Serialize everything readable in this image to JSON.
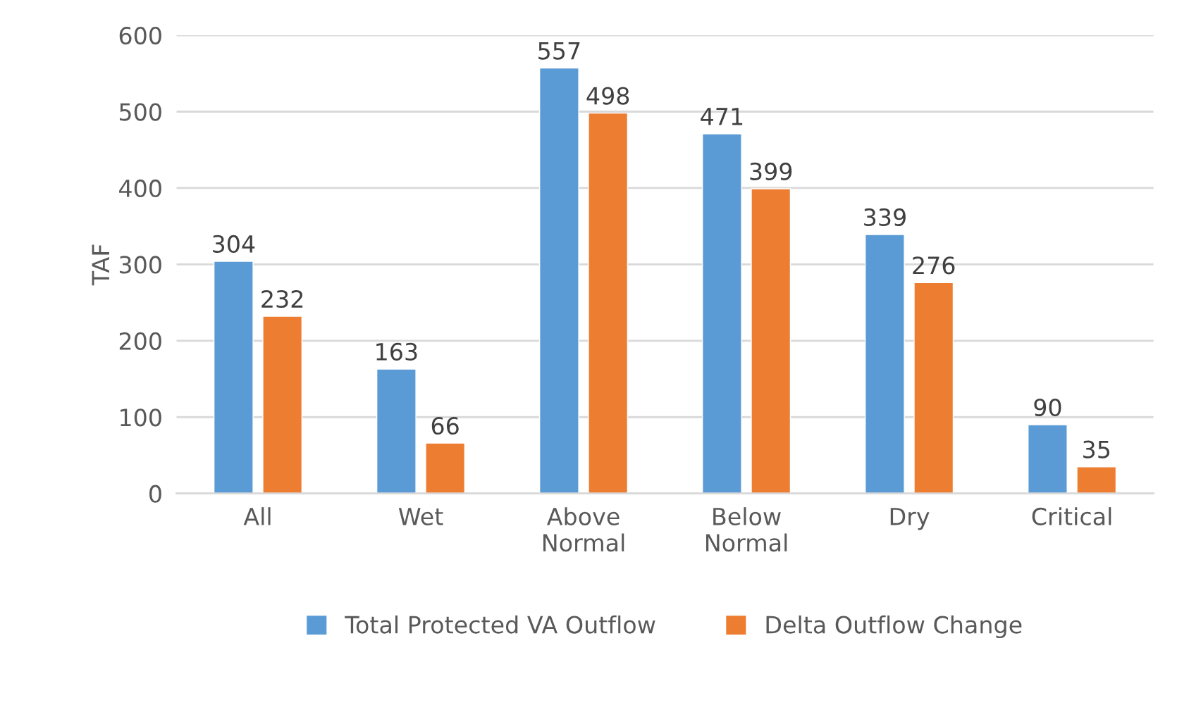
{
  "chart_data": {
    "type": "bar",
    "ylabel": "TAF",
    "categories": [
      "All",
      "Wet",
      "Above\nNormal",
      "Below\nNormal",
      "Dry",
      "Critical"
    ],
    "series": [
      {
        "name": "Total Protected VA Outflow",
        "color": "#5b9bd5",
        "values": [
          304,
          163,
          557,
          471,
          339,
          90
        ]
      },
      {
        "name": "Delta Outflow Change",
        "color": "#ed7d31",
        "values": [
          232,
          66,
          498,
          399,
          276,
          35
        ]
      }
    ],
    "ylim": [
      0,
      600
    ],
    "yticks": [
      0,
      100,
      200,
      300,
      400,
      500,
      600
    ],
    "grid": "y",
    "legend": "bottom",
    "data_labels": true
  }
}
